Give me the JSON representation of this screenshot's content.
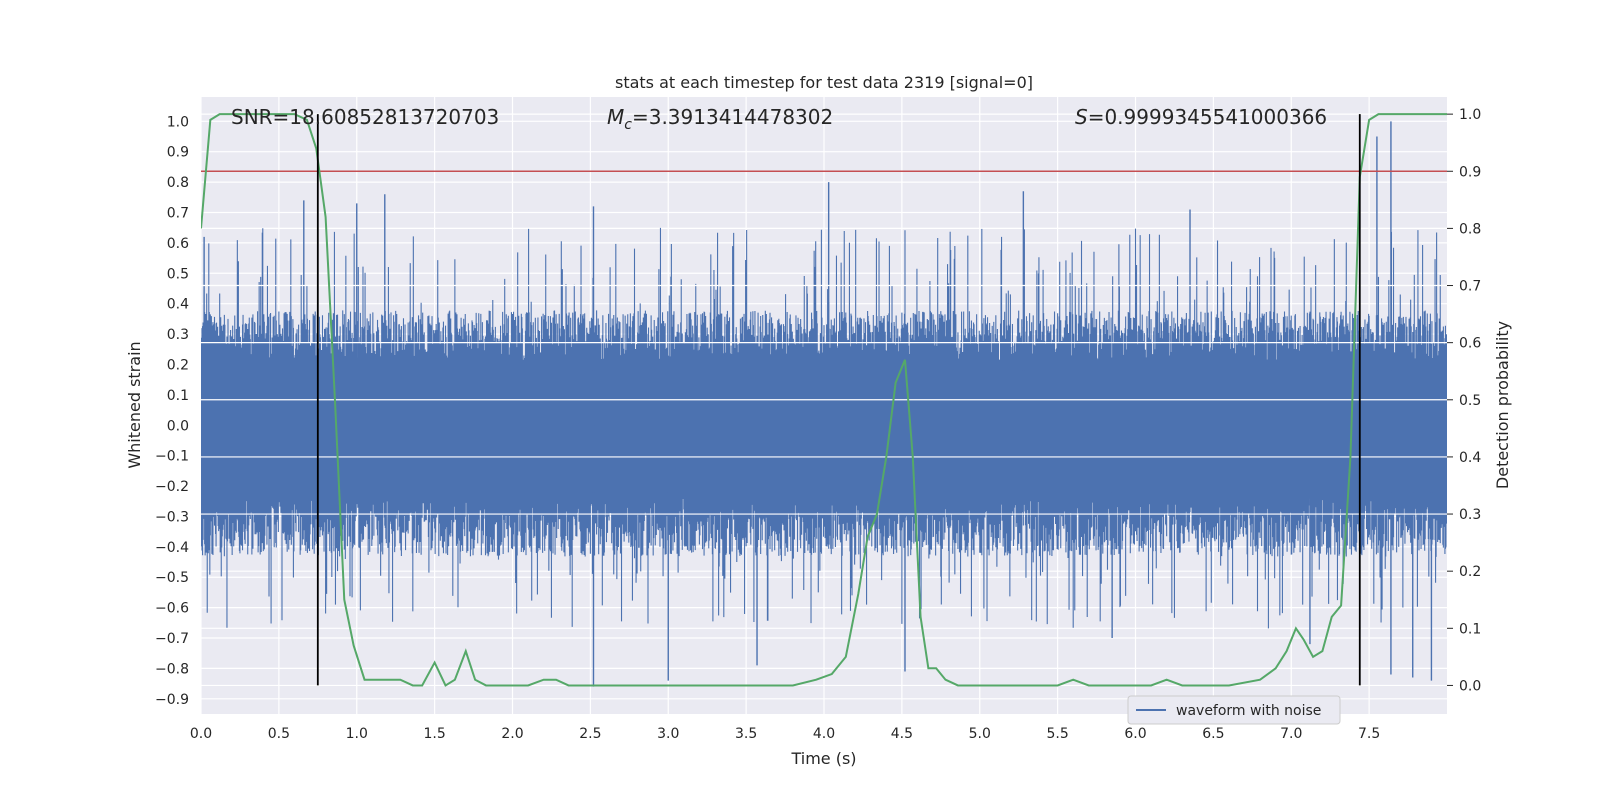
{
  "chart_data": {
    "type": "line",
    "title": "stats at each timestep for test data 2319 [signal=0]",
    "xlabel": "Time (s)",
    "ylabel_left": "Whitened strain",
    "ylabel_right": "Detection probability",
    "xlim": [
      0.0,
      8.0
    ],
    "ylim_left": [
      -0.95,
      1.08
    ],
    "ylim_right": [
      -0.05,
      1.03
    ],
    "x_ticks": [
      "0.0",
      "0.5",
      "1.0",
      "1.5",
      "2.0",
      "2.5",
      "3.0",
      "3.5",
      "4.0",
      "4.5",
      "5.0",
      "5.5",
      "6.0",
      "6.5",
      "7.0",
      "7.5"
    ],
    "y_left_ticks": [
      "−0.9",
      "−0.8",
      "−0.7",
      "−0.6",
      "−0.5",
      "−0.4",
      "−0.3",
      "−0.2",
      "−0.1",
      "0.0",
      "0.1",
      "0.2",
      "0.3",
      "0.4",
      "0.5",
      "0.6",
      "0.7",
      "0.8",
      "0.9",
      "1.0"
    ],
    "y_right_ticks": [
      "0.0",
      "0.1",
      "0.2",
      "0.3",
      "0.4",
      "0.5",
      "0.6",
      "0.7",
      "0.8",
      "0.9",
      "1.0"
    ],
    "grid": true,
    "legend": {
      "placement": "lower-right",
      "entries": [
        "waveform with noise"
      ]
    },
    "annotations": {
      "snr": "SNR=18.60852813720703",
      "mc_symbol": "M",
      "mc_subscript": "c",
      "mc_value": "=3.3913414478302",
      "s_symbol": "S",
      "s_value": "=0.9999345541000366"
    },
    "threshold": {
      "axis": "right",
      "value": 0.9,
      "color": "#c44e52"
    },
    "vertical_markers": {
      "x": [
        0.75,
        7.44
      ],
      "y_range_right": [
        0.0,
        1.0
      ],
      "color": "#000000"
    },
    "series": [
      {
        "name": "waveform with noise",
        "axis": "left",
        "color": "#4c72b0",
        "x_range": [
          0.0,
          8.0
        ],
        "envelope_upper_typical": 0.28,
        "envelope_lower_typical": -0.32,
        "spikes": [
          [
            0.02,
            0.62
          ],
          [
            0.66,
            0.74
          ],
          [
            1.0,
            0.73
          ],
          [
            1.18,
            0.76
          ],
          [
            2.52,
            0.72
          ],
          [
            4.03,
            0.8
          ],
          [
            5.28,
            0.77
          ],
          [
            6.35,
            0.71
          ],
          [
            7.55,
            0.95
          ],
          [
            7.64,
            1.0
          ],
          [
            2.52,
            -0.86
          ],
          [
            3.0,
            -0.84
          ],
          [
            3.57,
            -0.79
          ],
          [
            4.52,
            -0.81
          ],
          [
            7.64,
            -0.82
          ],
          [
            7.9,
            -0.84
          ],
          [
            7.78,
            -0.83
          ],
          [
            5.85,
            -0.7
          ],
          [
            7.12,
            -0.72
          ]
        ]
      },
      {
        "name": "detection probability",
        "axis": "right",
        "color": "#55a868",
        "x": [
          0.0,
          0.06,
          0.12,
          0.2,
          0.3,
          0.4,
          0.5,
          0.6,
          0.68,
          0.74,
          0.8,
          0.86,
          0.92,
          0.98,
          1.05,
          1.12,
          1.2,
          1.28,
          1.36,
          1.42,
          1.5,
          1.57,
          1.63,
          1.7,
          1.76,
          1.83,
          1.9,
          2.0,
          2.1,
          2.2,
          2.28,
          2.36,
          2.44,
          2.52,
          2.6,
          2.8,
          3.0,
          3.2,
          3.4,
          3.6,
          3.8,
          3.95,
          4.05,
          4.14,
          4.22,
          4.28,
          4.34,
          4.4,
          4.46,
          4.52,
          4.57,
          4.62,
          4.67,
          4.72,
          4.78,
          4.86,
          4.96,
          5.1,
          5.3,
          5.5,
          5.6,
          5.7,
          5.8,
          5.9,
          6.0,
          6.1,
          6.2,
          6.3,
          6.4,
          6.6,
          6.8,
          6.9,
          6.97,
          7.03,
          7.08,
          7.14,
          7.2,
          7.26,
          7.32,
          7.38,
          7.44,
          7.5,
          7.56,
          7.62,
          7.7,
          7.8,
          8.0
        ],
        "y": [
          0.8,
          0.99,
          1.0,
          1.0,
          1.0,
          1.0,
          1.0,
          1.0,
          0.99,
          0.94,
          0.82,
          0.5,
          0.15,
          0.07,
          0.01,
          0.01,
          0.01,
          0.01,
          0.0,
          0.0,
          0.04,
          0.0,
          0.01,
          0.06,
          0.01,
          0.0,
          0.0,
          0.0,
          0.0,
          0.01,
          0.01,
          0.0,
          0.0,
          0.0,
          0.0,
          0.0,
          0.0,
          0.0,
          0.0,
          0.0,
          0.0,
          0.01,
          0.02,
          0.05,
          0.16,
          0.26,
          0.3,
          0.4,
          0.53,
          0.57,
          0.4,
          0.12,
          0.03,
          0.03,
          0.01,
          0.0,
          0.0,
          0.0,
          0.0,
          0.0,
          0.01,
          0.0,
          0.0,
          0.0,
          0.0,
          0.0,
          0.01,
          0.0,
          0.0,
          0.0,
          0.01,
          0.03,
          0.06,
          0.1,
          0.08,
          0.05,
          0.06,
          0.12,
          0.14,
          0.4,
          0.89,
          0.99,
          1.0,
          1.0,
          1.0,
          1.0,
          1.0
        ]
      }
    ]
  }
}
